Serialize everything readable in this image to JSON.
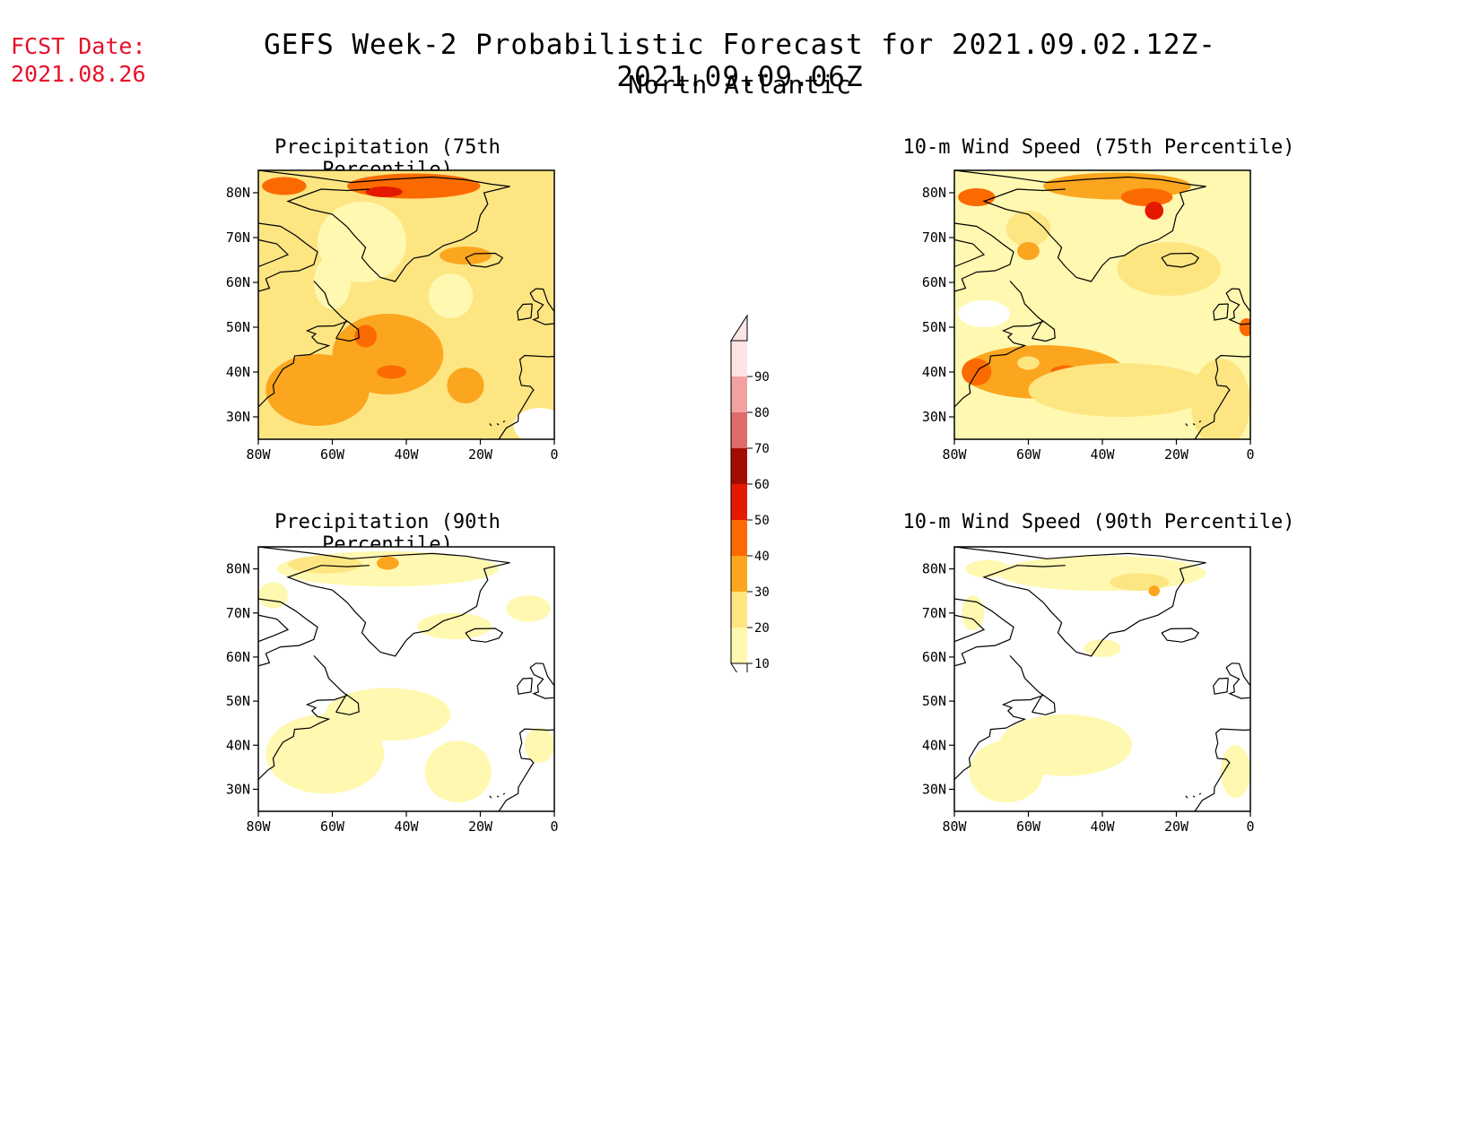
{
  "header": {
    "fcst_label": "FCST Date:",
    "fcst_date": "2021.08.26",
    "title": "GEFS Week-2 Probabilistic Forecast for 2021.09.02.12Z-2021.09.09.06Z",
    "region": "North Atlantic"
  },
  "panels": [
    {
      "id": "precip75",
      "title": "Precipitation (75th Percentile)",
      "base_level": 20,
      "blobs": [
        {
          "lon": -38,
          "lat": 81.5,
          "rx": 18,
          "ry": 2.8,
          "level": 40
        },
        {
          "lon": -46,
          "lat": 80.2,
          "rx": 5,
          "ry": 1.2,
          "level": 50
        },
        {
          "lon": -73,
          "lat": 81.5,
          "rx": 6,
          "ry": 2,
          "level": 40
        },
        {
          "lon": -45,
          "lat": 44,
          "rx": 15,
          "ry": 9,
          "level": 30
        },
        {
          "lon": -64,
          "lat": 36,
          "rx": 14,
          "ry": 8,
          "level": 30
        },
        {
          "lon": -44,
          "lat": 40,
          "rx": 4,
          "ry": 1.5,
          "level": 40
        },
        {
          "lon": -51,
          "lat": 48,
          "rx": 3,
          "ry": 2.5,
          "level": 40
        },
        {
          "lon": -24,
          "lat": 37,
          "rx": 5,
          "ry": 4,
          "level": 30
        },
        {
          "lon": -24,
          "lat": 66,
          "rx": 7,
          "ry": 2,
          "level": 30
        },
        {
          "lon": -52,
          "lat": 69,
          "rx": 12,
          "ry": 9,
          "level": 10
        },
        {
          "lon": -60,
          "lat": 60,
          "rx": 5,
          "ry": 6,
          "level": 10
        },
        {
          "lon": -28,
          "lat": 57,
          "rx": 6,
          "ry": 5,
          "level": 10
        },
        {
          "lon": -4,
          "lat": 28,
          "rx": 7,
          "ry": 4,
          "level": 0
        }
      ]
    },
    {
      "id": "wind75",
      "title": "10-m Wind Speed (75th Percentile)",
      "base_level": 10,
      "blobs": [
        {
          "lon": -36,
          "lat": 81.5,
          "rx": 20,
          "ry": 3,
          "level": 30
        },
        {
          "lon": -28,
          "lat": 79,
          "rx": 7,
          "ry": 2,
          "level": 40
        },
        {
          "lon": -26,
          "lat": 76,
          "rx": 2.5,
          "ry": 2,
          "level": 50
        },
        {
          "lon": -74,
          "lat": 79,
          "rx": 5,
          "ry": 2,
          "level": 40
        },
        {
          "lon": -56,
          "lat": 40,
          "rx": 22,
          "ry": 6,
          "level": 30
        },
        {
          "lon": -50,
          "lat": 40,
          "rx": 4,
          "ry": 1.5,
          "level": 40
        },
        {
          "lon": -74,
          "lat": 40,
          "rx": 4,
          "ry": 3,
          "level": 40
        },
        {
          "lon": -35,
          "lat": 36,
          "rx": 25,
          "ry": 6,
          "level": 20
        },
        {
          "lon": -8,
          "lat": 33,
          "rx": 8,
          "ry": 10,
          "level": 20
        },
        {
          "lon": -22,
          "lat": 63,
          "rx": 14,
          "ry": 6,
          "level": 20
        },
        {
          "lon": -60,
          "lat": 72,
          "rx": 6,
          "ry": 4,
          "level": 20
        },
        {
          "lon": -60,
          "lat": 67,
          "rx": 3,
          "ry": 2,
          "level": 30
        },
        {
          "lon": -1,
          "lat": 50,
          "rx": 2,
          "ry": 2,
          "level": 40
        },
        {
          "lon": -72,
          "lat": 53,
          "rx": 7,
          "ry": 3,
          "level": 0
        },
        {
          "lon": -60,
          "lat": 42,
          "rx": 3,
          "ry": 1.5,
          "level": 20
        }
      ]
    },
    {
      "id": "precip90",
      "title": "Precipitation (90th Percentile)",
      "base_level": 0,
      "blobs": [
        {
          "lon": -45,
          "lat": 80,
          "rx": 30,
          "ry": 4,
          "level": 10
        },
        {
          "lon": -45,
          "lat": 81.3,
          "rx": 3,
          "ry": 1.5,
          "level": 30
        },
        {
          "lon": -62,
          "lat": 81,
          "rx": 10,
          "ry": 2,
          "level": 20
        },
        {
          "lon": -45,
          "lat": 47,
          "rx": 17,
          "ry": 6,
          "level": 10
        },
        {
          "lon": -62,
          "lat": 38,
          "rx": 16,
          "ry": 9,
          "level": 10
        },
        {
          "lon": -26,
          "lat": 34,
          "rx": 9,
          "ry": 7,
          "level": 10
        },
        {
          "lon": -27,
          "lat": 67,
          "rx": 10,
          "ry": 3,
          "level": 10
        },
        {
          "lon": -4,
          "lat": 40,
          "rx": 4,
          "ry": 4,
          "level": 10
        },
        {
          "lon": -7,
          "lat": 71,
          "rx": 6,
          "ry": 3,
          "level": 10
        },
        {
          "lon": -76,
          "lat": 74,
          "rx": 4,
          "ry": 3,
          "level": 10
        }
      ]
    },
    {
      "id": "wind90",
      "title": "10-m Wind Speed (90th Percentile)",
      "base_level": 0,
      "blobs": [
        {
          "lon": -40,
          "lat": 79,
          "rx": 28,
          "ry": 4,
          "level": 10
        },
        {
          "lon": -30,
          "lat": 77,
          "rx": 8,
          "ry": 2,
          "level": 20
        },
        {
          "lon": -26,
          "lat": 75,
          "rx": 1.5,
          "ry": 1.2,
          "level": 30
        },
        {
          "lon": -50,
          "lat": 40,
          "rx": 18,
          "ry": 7,
          "level": 10
        },
        {
          "lon": -66,
          "lat": 34,
          "rx": 10,
          "ry": 7,
          "level": 10
        },
        {
          "lon": -71,
          "lat": 80,
          "rx": 6,
          "ry": 2,
          "level": 10
        },
        {
          "lon": -75,
          "lat": 70,
          "rx": 3,
          "ry": 4,
          "level": 10
        },
        {
          "lon": -4,
          "lat": 34,
          "rx": 4,
          "ry": 6,
          "level": 10
        },
        {
          "lon": -40,
          "lat": 62,
          "rx": 5,
          "ry": 2,
          "level": 10
        }
      ]
    }
  ],
  "map_axes": {
    "xlim": [
      -80,
      0
    ],
    "ylim": [
      25,
      85
    ],
    "lon_ticks": [
      {
        "v": -80,
        "t": "80W"
      },
      {
        "v": -60,
        "t": "60W"
      },
      {
        "v": -40,
        "t": "40W"
      },
      {
        "v": -20,
        "t": "20W"
      },
      {
        "v": 0,
        "t": "0"
      }
    ],
    "lat_ticks": [
      {
        "v": 80,
        "t": "80N"
      },
      {
        "v": 70,
        "t": "70N"
      },
      {
        "v": 60,
        "t": "60N"
      },
      {
        "v": 50,
        "t": "50N"
      },
      {
        "v": 40,
        "t": "40N"
      },
      {
        "v": 30,
        "t": "30N"
      }
    ]
  },
  "colorbar": {
    "levels": [
      10,
      20,
      30,
      40,
      50,
      60,
      70,
      80,
      90
    ],
    "colors": {
      "0": "#ffffff",
      "10": "#fff8b0",
      "20": "#fde582",
      "30": "#fba61e",
      "40": "#fb6a00",
      "50": "#e41a00",
      "60": "#a50c00",
      "70": "#df6a6a",
      "80": "#f2a0a0",
      "90": "#fde4e4"
    }
  }
}
